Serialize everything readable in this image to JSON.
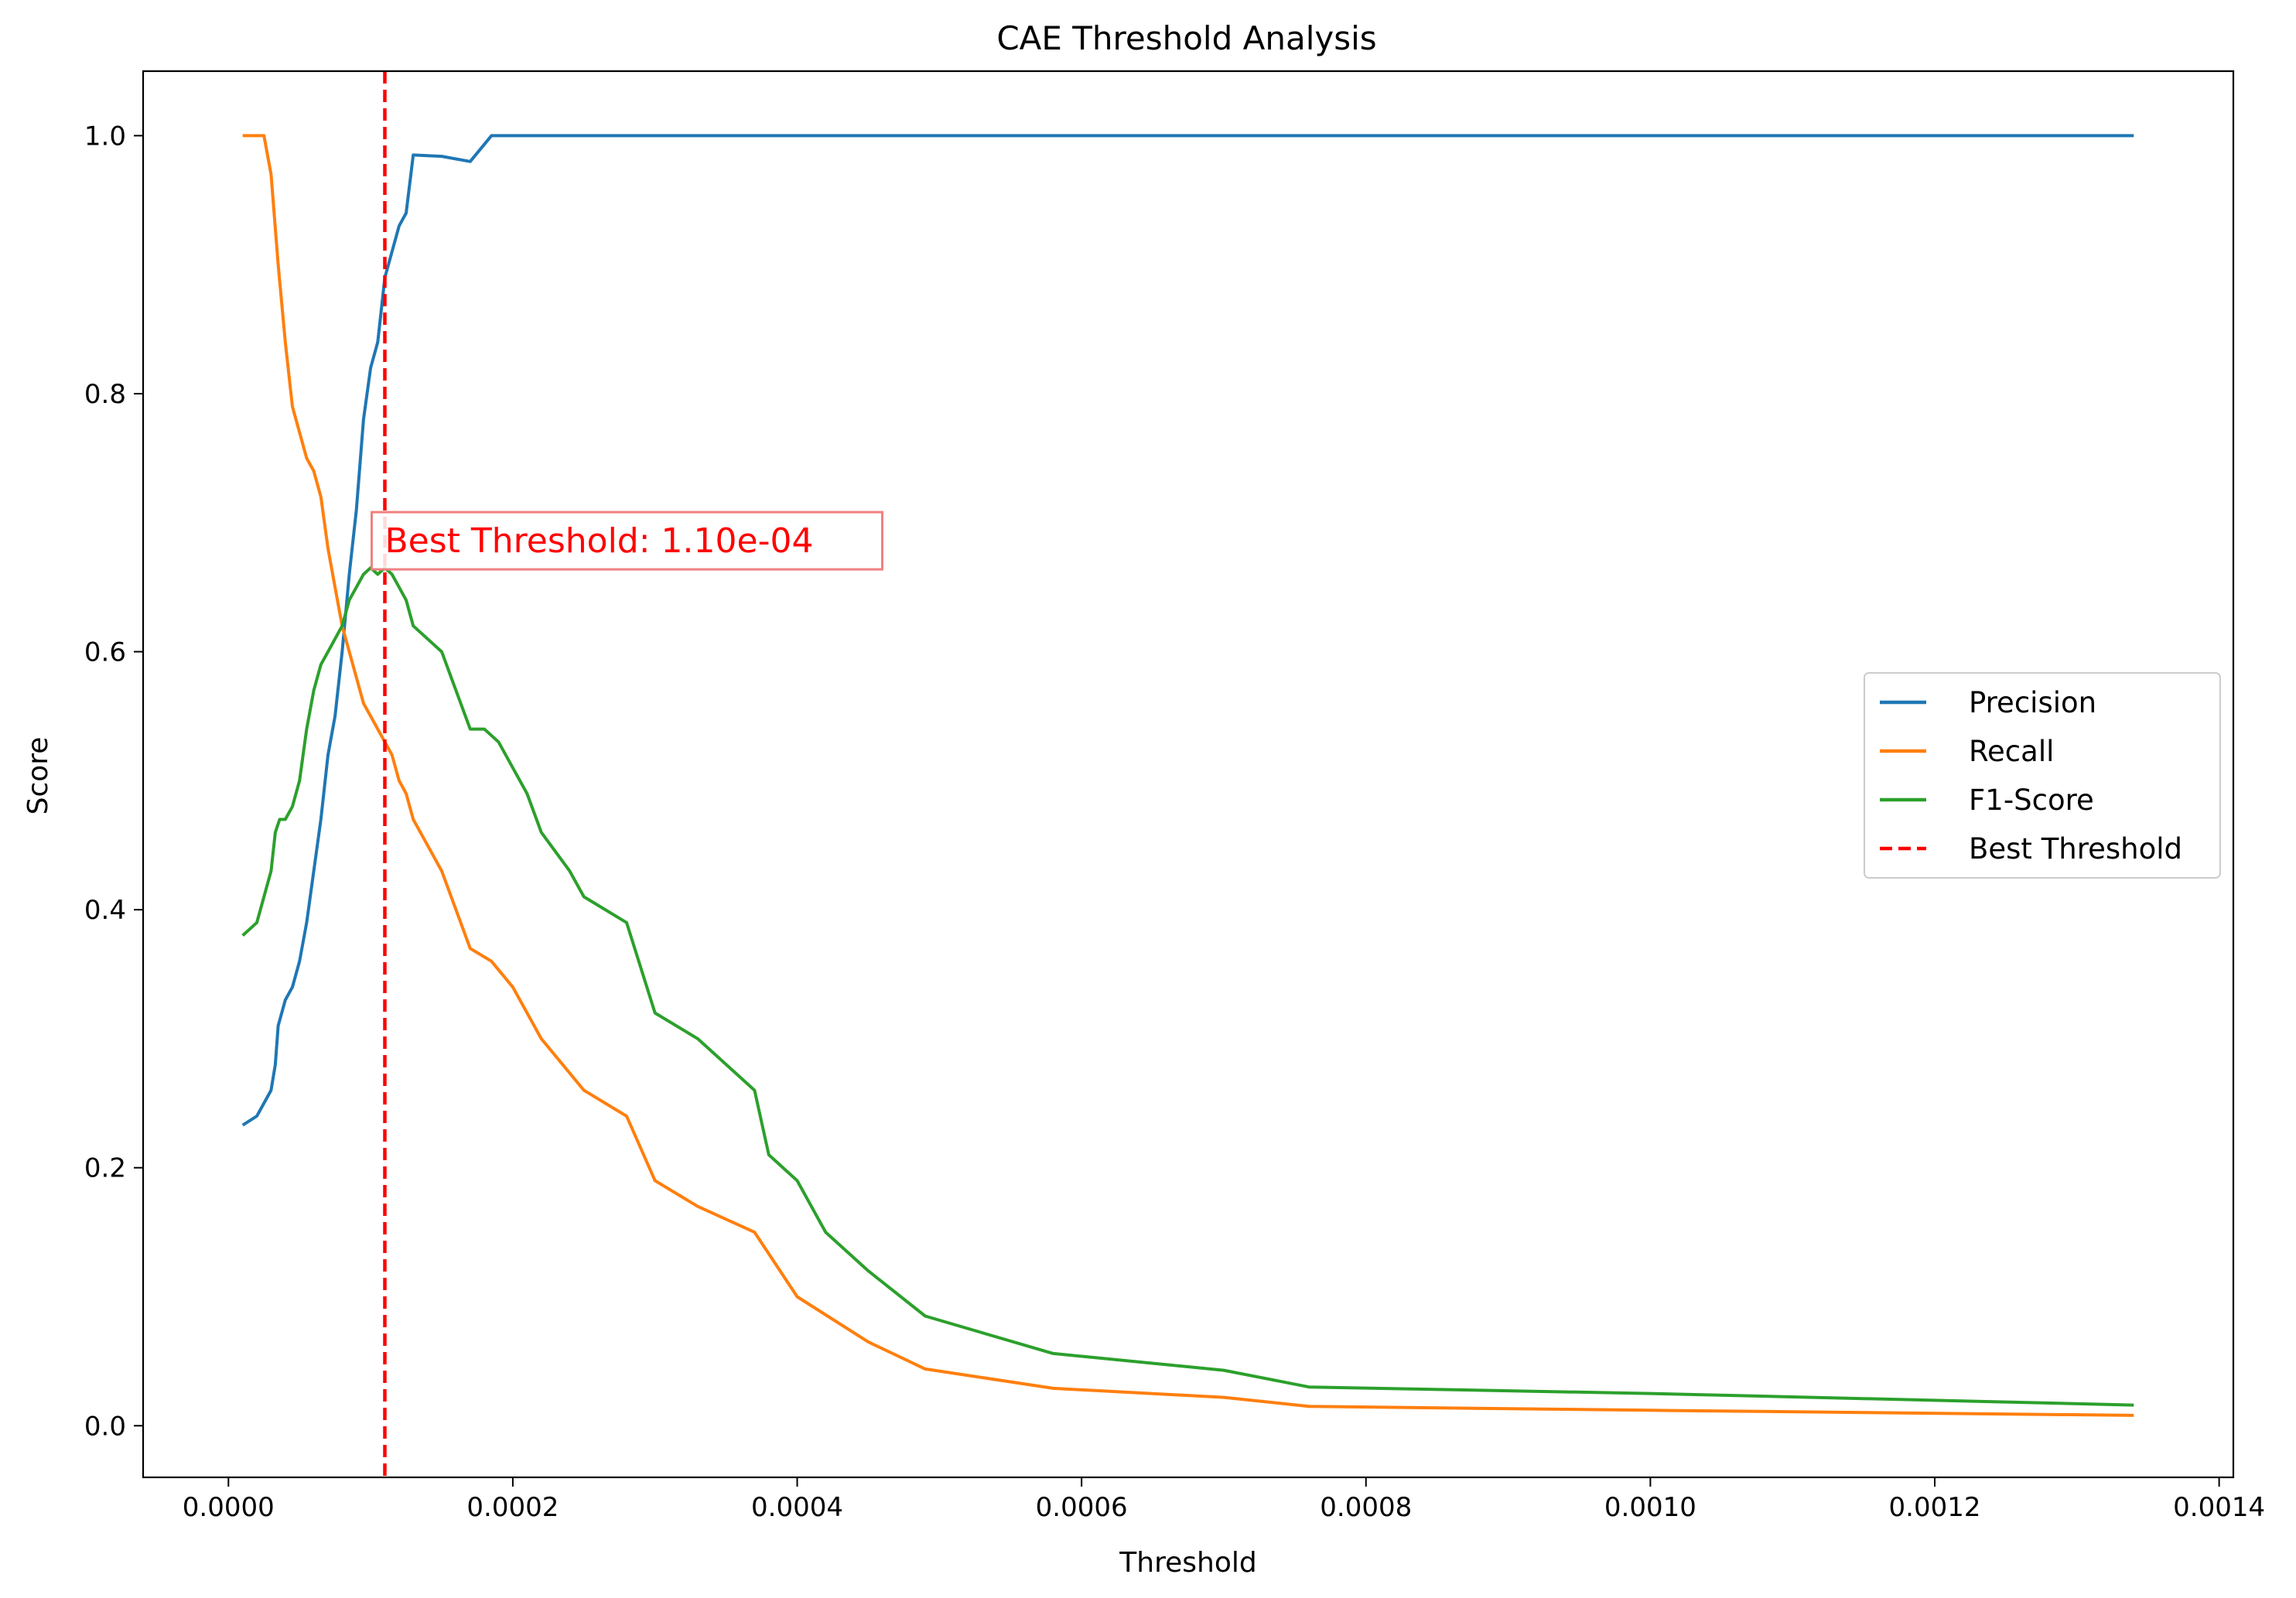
{
  "chart_data": {
    "type": "line",
    "title": "CAE Threshold Analysis",
    "xlabel": "Threshold",
    "ylabel": "Score",
    "xlim": [
      -6e-05,
      0.00141
    ],
    "ylim": [
      -0.04,
      1.05
    ],
    "xticks": [
      {
        "value": 0.0,
        "label": "0.0000"
      },
      {
        "value": 0.0002,
        "label": "0.0002"
      },
      {
        "value": 0.0004,
        "label": "0.0004"
      },
      {
        "value": 0.0006,
        "label": "0.0006"
      },
      {
        "value": 0.0008,
        "label": "0.0008"
      },
      {
        "value": 0.001,
        "label": "0.0010"
      },
      {
        "value": 0.0012,
        "label": "0.0012"
      },
      {
        "value": 0.0014,
        "label": "0.0014"
      }
    ],
    "yticks": [
      {
        "value": 0.0,
        "label": "0.0"
      },
      {
        "value": 0.2,
        "label": "0.2"
      },
      {
        "value": 0.4,
        "label": "0.4"
      },
      {
        "value": 0.6,
        "label": "0.6"
      },
      {
        "value": 0.8,
        "label": "0.8"
      },
      {
        "value": 1.0,
        "label": "1.0"
      }
    ],
    "grid": false,
    "legend_position": "center-right",
    "series": [
      {
        "name": "Precision",
        "color": "#1f77b4",
        "x": [
          1e-05,
          2e-05,
          3e-05,
          3.3e-05,
          3.5e-05,
          4e-05,
          4.5e-05,
          5e-05,
          5.5e-05,
          6e-05,
          6.5e-05,
          7e-05,
          7.5e-05,
          8e-05,
          8.5e-05,
          9e-05,
          9.5e-05,
          0.0001,
          0.000105,
          0.00011,
          0.000115,
          0.00012,
          0.000125,
          0.00013,
          0.00015,
          0.00017,
          0.000185,
          0.0003,
          0.0006,
          0.001,
          0.00134
        ],
        "y": [
          0.233,
          0.24,
          0.26,
          0.28,
          0.31,
          0.33,
          0.34,
          0.36,
          0.39,
          0.43,
          0.47,
          0.52,
          0.55,
          0.6,
          0.66,
          0.71,
          0.78,
          0.82,
          0.84,
          0.89,
          0.91,
          0.93,
          0.94,
          0.985,
          0.984,
          0.98,
          1.0,
          1.0,
          1.0,
          1.0,
          1.0
        ]
      },
      {
        "name": "Recall",
        "color": "#ff7f0e",
        "x": [
          1e-05,
          2.5e-05,
          3e-05,
          3.5e-05,
          4e-05,
          4.5e-05,
          5e-05,
          5.5e-05,
          6e-05,
          6.5e-05,
          7e-05,
          7.5e-05,
          8e-05,
          8.5e-05,
          9e-05,
          9.5e-05,
          0.0001,
          0.000105,
          0.00011,
          0.000115,
          0.00012,
          0.000125,
          0.00013,
          0.00014,
          0.00015,
          0.00016,
          0.00017,
          0.000185,
          0.0002,
          0.00022,
          0.00025,
          0.00028,
          0.0003,
          0.00033,
          0.00037,
          0.0004,
          0.00045,
          0.00049,
          0.00058,
          0.0007,
          0.00076,
          0.001,
          0.00134
        ],
        "y": [
          1.0,
          1.0,
          0.97,
          0.9,
          0.84,
          0.79,
          0.77,
          0.75,
          0.74,
          0.72,
          0.68,
          0.65,
          0.62,
          0.6,
          0.58,
          0.56,
          0.55,
          0.54,
          0.53,
          0.52,
          0.5,
          0.49,
          0.47,
          0.45,
          0.43,
          0.4,
          0.37,
          0.36,
          0.34,
          0.3,
          0.26,
          0.24,
          0.19,
          0.17,
          0.15,
          0.1,
          0.065,
          0.044,
          0.029,
          0.022,
          0.015,
          0.012,
          0.008
        ]
      },
      {
        "name": "F1-Score",
        "color": "#2ca02c",
        "x": [
          1e-05,
          2e-05,
          3e-05,
          3.3e-05,
          3.6e-05,
          4e-05,
          4.5e-05,
          5e-05,
          5.5e-05,
          6e-05,
          6.5e-05,
          7e-05,
          7.5e-05,
          8e-05,
          8.5e-05,
          9e-05,
          9.5e-05,
          0.0001,
          0.000105,
          0.00011,
          0.000115,
          0.00012,
          0.000125,
          0.00013,
          0.00015,
          0.00016,
          0.00017,
          0.00018,
          0.00019,
          0.0002,
          0.00021,
          0.00022,
          0.00024,
          0.00025,
          0.00028,
          0.0003,
          0.00033,
          0.00037,
          0.00038,
          0.0004,
          0.00042,
          0.00045,
          0.00049,
          0.00058,
          0.0007,
          0.00076,
          0.001,
          0.00134
        ],
        "y": [
          0.38,
          0.39,
          0.43,
          0.46,
          0.47,
          0.47,
          0.48,
          0.5,
          0.54,
          0.57,
          0.59,
          0.6,
          0.61,
          0.62,
          0.64,
          0.65,
          0.66,
          0.665,
          0.66,
          0.665,
          0.66,
          0.65,
          0.64,
          0.62,
          0.6,
          0.57,
          0.54,
          0.54,
          0.53,
          0.51,
          0.49,
          0.46,
          0.43,
          0.41,
          0.39,
          0.32,
          0.3,
          0.26,
          0.21,
          0.19,
          0.15,
          0.12,
          0.085,
          0.056,
          0.043,
          0.03,
          0.025,
          0.016
        ]
      },
      {
        "name": "Best Threshold",
        "color": "#ff0000",
        "dashed": true,
        "vline": 0.00011
      }
    ],
    "annotations": [
      {
        "text": "Best Threshold: 1.10e-04",
        "x": 0.00011,
        "y": 0.68,
        "color": "#ff0000",
        "box_color": "#f08080"
      }
    ]
  }
}
